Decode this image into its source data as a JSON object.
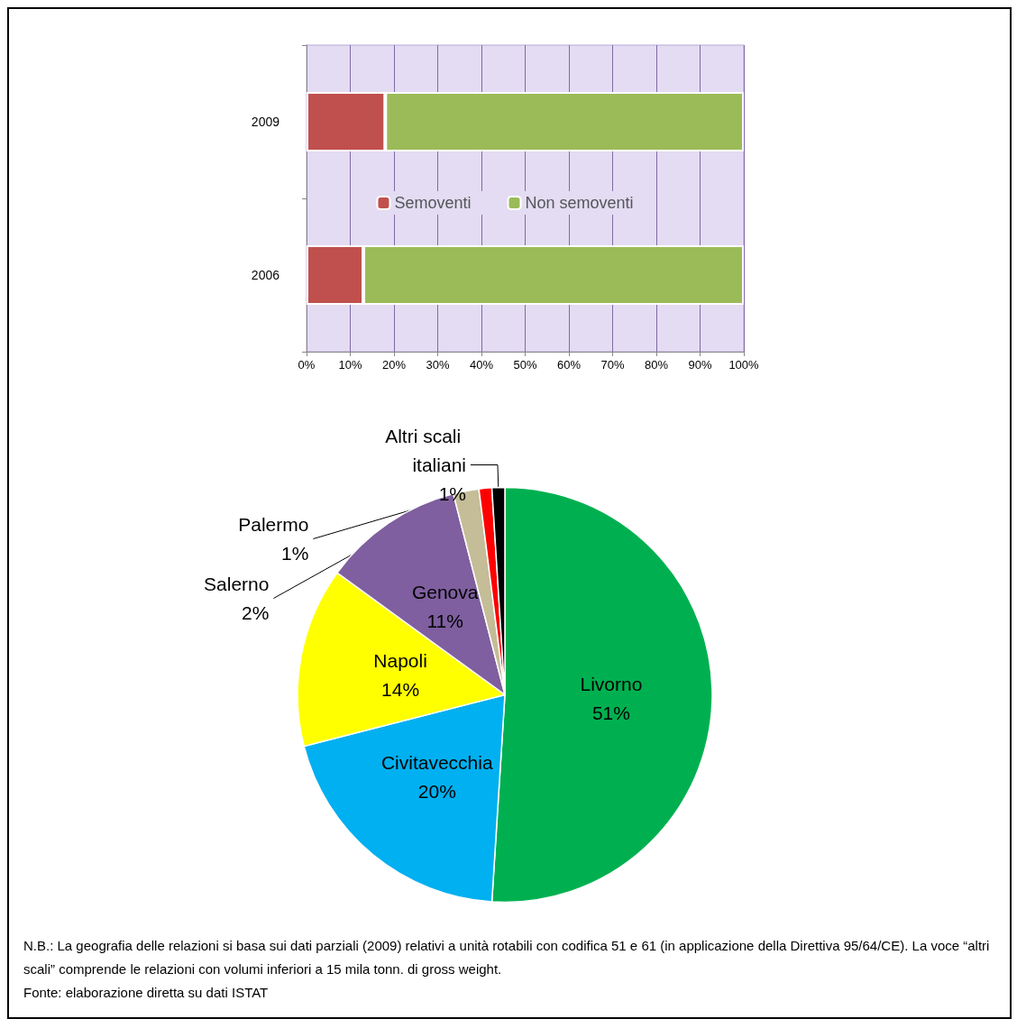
{
  "chart_data": [
    {
      "type": "bar",
      "orientation": "horizontal",
      "stacked": true,
      "categories": [
        "2009",
        "2006"
      ],
      "series": [
        {
          "name": "Semoventi",
          "color": "#c0504d",
          "values": [
            18,
            13
          ]
        },
        {
          "name": "Non semoventi",
          "color": "#9bbb59",
          "values": [
            82,
            87
          ]
        }
      ],
      "xlim": [
        0,
        100
      ],
      "xticks": [
        {
          "value": 0,
          "label": "0%"
        },
        {
          "value": 10,
          "label": "10%"
        },
        {
          "value": 20,
          "label": "20%"
        },
        {
          "value": 30,
          "label": "30%"
        },
        {
          "value": 40,
          "label": "40%"
        },
        {
          "value": 50,
          "label": "50%"
        },
        {
          "value": 60,
          "label": "60%"
        },
        {
          "value": 70,
          "label": "70%"
        },
        {
          "value": 80,
          "label": "80%"
        },
        {
          "value": 90,
          "label": "90%"
        },
        {
          "value": 100,
          "label": "100%"
        }
      ],
      "grid": "x",
      "legend": "center"
    },
    {
      "type": "pie",
      "categories": [
        "Livorno",
        "Civitavecchia",
        "Napoli",
        "Genova",
        "Salerno",
        "Palermo",
        "Altri scali italiani"
      ],
      "values": [
        51,
        20,
        14,
        11,
        2,
        1,
        1
      ],
      "value_labels": [
        "51%",
        "20%",
        "14%",
        "11%",
        "2%",
        "1%",
        "1%"
      ],
      "colors": [
        "#00b050",
        "#00b0f0",
        "#ffff00",
        "#7f5f9f",
        "#c4bd97",
        "#ff0000",
        "#000000"
      ],
      "annotations": [
        "N.B.: La geografia delle relazioni si basa sui dati parziali (2009) relativi a unità rotabili con codifica 51 e 61 (in applicazione della Direttiva 95/64/CE). La voce “altri scali” comprende le relazioni con volumi inferiori a 15 mila tonn. di gross weight.",
        "Fonte: elaborazione diretta su dati ISTAT"
      ]
    }
  ]
}
